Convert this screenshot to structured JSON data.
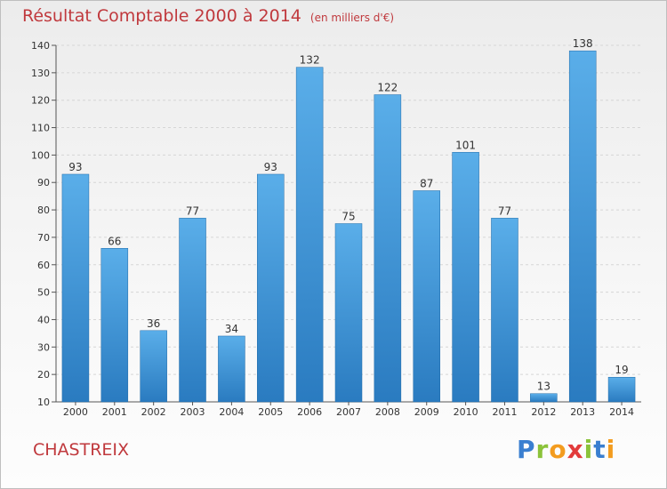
{
  "header": {
    "title": "Résultat Comptable 2000 à 2014",
    "subtitle": "(en milliers d'€)"
  },
  "footer": {
    "commune": "CHASTREIX",
    "logo_letters": [
      "P",
      "r",
      "o",
      "x",
      "i",
      "t",
      "i"
    ]
  },
  "colors": {
    "bar_top": "#5aaee9",
    "bar_bottom": "#2a7bc0",
    "title": "#c0393d"
  },
  "chart_data": {
    "type": "bar",
    "title": "Résultat Comptable 2000 à 2014",
    "subtitle": "(en milliers d'€)",
    "xlabel": "",
    "ylabel": "",
    "categories": [
      "2000",
      "2001",
      "2002",
      "2003",
      "2004",
      "2005",
      "2006",
      "2007",
      "2008",
      "2009",
      "2010",
      "2011",
      "2012",
      "2013",
      "2014"
    ],
    "values": [
      93,
      66,
      36,
      77,
      34,
      93,
      132,
      75,
      122,
      87,
      101,
      77,
      13,
      138,
      19
    ],
    "ylim": [
      10,
      140
    ],
    "yticks": [
      10,
      20,
      30,
      40,
      50,
      60,
      70,
      80,
      90,
      100,
      110,
      120,
      130,
      140
    ],
    "grid": true,
    "legend": "none"
  }
}
